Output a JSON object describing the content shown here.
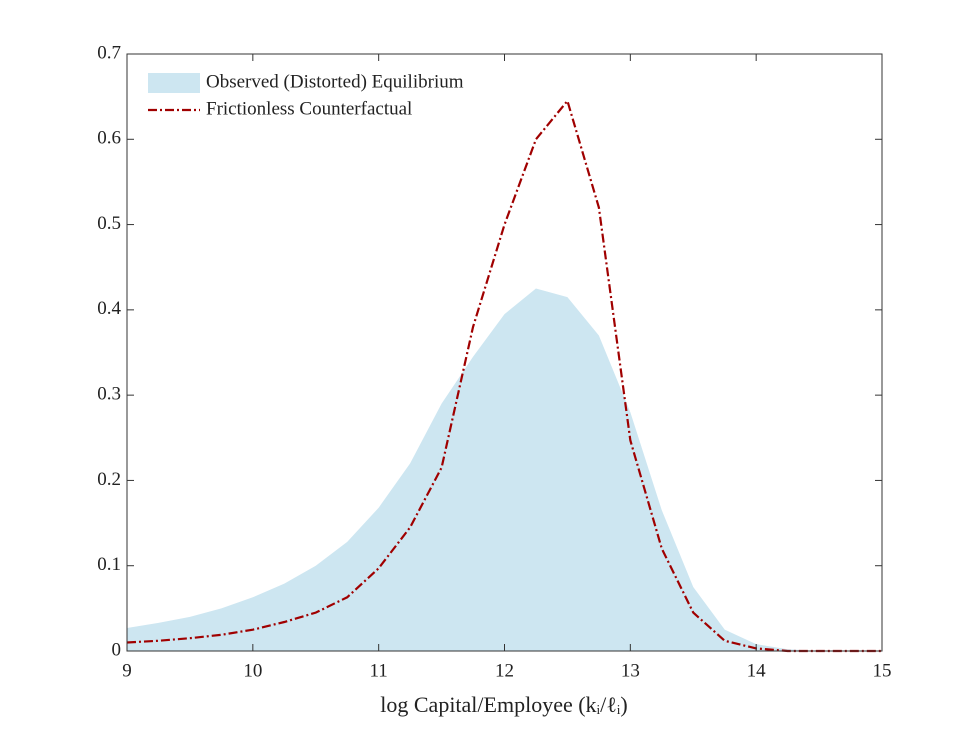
{
  "chart_data": {
    "type": "area-line",
    "xlabel": "log Capital/Employee (kᵢ/ℓᵢ)",
    "x": [
      9,
      9.25,
      9.5,
      9.75,
      10,
      10.25,
      10.5,
      10.75,
      11,
      11.25,
      11.5,
      11.75,
      12,
      12.25,
      12.5,
      12.75,
      13,
      13.25,
      13.5,
      13.75,
      14,
      14.25,
      14.5,
      14.75,
      15
    ],
    "series": [
      {
        "name": "Observed (Distorted) Equilibrium",
        "kind": "area",
        "color": "#cde6f1",
        "values": [
          0.027,
          0.033,
          0.04,
          0.05,
          0.063,
          0.079,
          0.1,
          0.128,
          0.168,
          0.22,
          0.29,
          0.345,
          0.395,
          0.425,
          0.415,
          0.37,
          0.28,
          0.165,
          0.075,
          0.025,
          0.008,
          0.002,
          0,
          0,
          0
        ]
      },
      {
        "name": "Frictionless Counterfactual",
        "kind": "line",
        "color": "#a00000",
        "values": [
          0.01,
          0.012,
          0.015,
          0.019,
          0.025,
          0.034,
          0.045,
          0.063,
          0.097,
          0.145,
          0.215,
          0.38,
          0.5,
          0.6,
          0.645,
          0.52,
          0.247,
          0.12,
          0.045,
          0.012,
          0.003,
          0,
          0,
          0,
          0
        ]
      }
    ],
    "xlim": [
      9,
      15
    ],
    "ylim": [
      0,
      0.7
    ],
    "xticks": [
      9,
      10,
      11,
      12,
      13,
      14,
      15
    ],
    "yticks": [
      0,
      0.1,
      0.2,
      0.3,
      0.4,
      0.5,
      0.6,
      0.7
    ],
    "legend": "upper-left"
  }
}
